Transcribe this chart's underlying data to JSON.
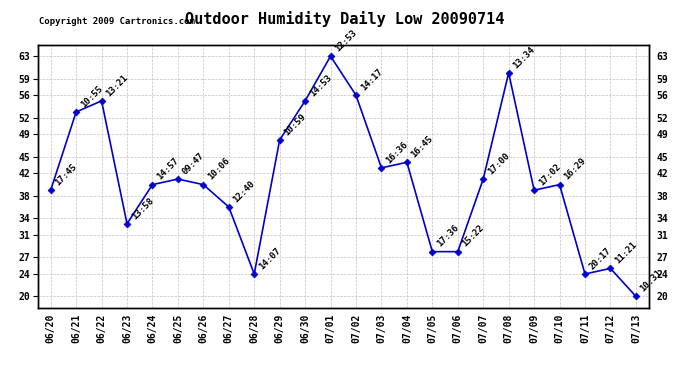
{
  "title": "Outdoor Humidity Daily Low 20090714",
  "copyright": "Copyright 2009 Cartronics.com",
  "x_labels": [
    "06/20",
    "06/21",
    "06/22",
    "06/23",
    "06/24",
    "06/25",
    "06/26",
    "06/27",
    "06/28",
    "06/29",
    "06/30",
    "07/01",
    "07/02",
    "07/03",
    "07/04",
    "07/05",
    "07/06",
    "07/07",
    "07/08",
    "07/09",
    "07/10",
    "07/11",
    "07/12",
    "07/13"
  ],
  "y_values": [
    39,
    53,
    55,
    33,
    40,
    41,
    40,
    36,
    24,
    48,
    55,
    63,
    56,
    43,
    44,
    28,
    28,
    41,
    60,
    39,
    40,
    24,
    25,
    20
  ],
  "point_labels": [
    "17:45",
    "10:55",
    "13:21",
    "13:58",
    "14:57",
    "09:47",
    "10:06",
    "12:40",
    "14:07",
    "10:59",
    "14:53",
    "12:53",
    "14:17",
    "16:36",
    "16:45",
    "17:36",
    "15:22",
    "17:00",
    "13:34",
    "17:02",
    "16:29",
    "20:17",
    "11:21",
    "10:31"
  ],
  "y_ticks": [
    20,
    24,
    27,
    31,
    34,
    38,
    42,
    45,
    49,
    52,
    56,
    59,
    63
  ],
  "ylim": [
    18,
    65
  ],
  "line_color": "#0000cc",
  "marker_color": "#0000cc",
  "bg_color": "#ffffff",
  "grid_color": "#bbbbbb",
  "title_fontsize": 11,
  "label_fontsize": 6.5,
  "copyright_fontsize": 6.5,
  "tick_fontsize": 7,
  "xlim_left": -0.5,
  "xlim_right": 23.5
}
